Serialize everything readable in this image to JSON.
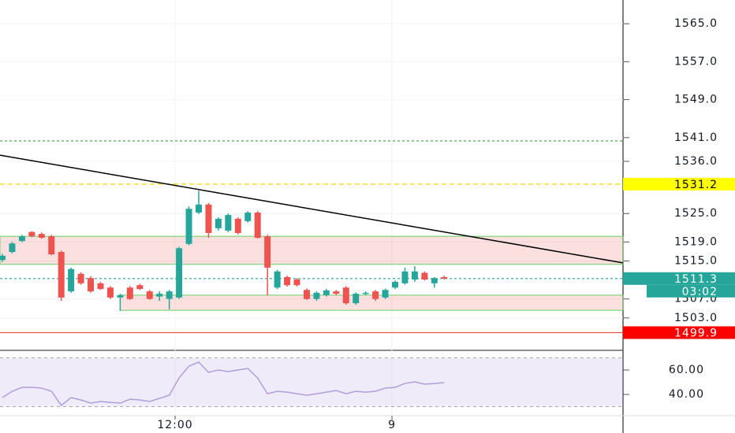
{
  "chart_data": {
    "type": "candlestick",
    "up_color": "#26a69a",
    "down_color": "#ef5350",
    "xlim": [
      -0.24,
      63.21
    ],
    "xticks": [
      {
        "value": 17.59,
        "label": "12:00"
      },
      {
        "value": 39.68,
        "label": "9"
      }
    ],
    "ylim": [
      1497,
      1570
    ],
    "yticks": [
      {
        "value": 1565,
        "label": "1565.0"
      },
      {
        "value": 1557,
        "label": "1557.0"
      },
      {
        "value": 1549,
        "label": "1549.0"
      },
      {
        "value": 1541,
        "label": "1541.0"
      },
      {
        "value": 1536,
        "label": "1536.0"
      },
      {
        "value": 1525,
        "label": "1525.0"
      },
      {
        "value": 1519,
        "label": "1519.0"
      },
      {
        "value": 1515,
        "label": "1515.0"
      },
      {
        "value": 1507,
        "label": "1507.0"
      },
      {
        "value": 1503,
        "label": "1503.0"
      }
    ],
    "grid": true,
    "open": [
      1515.2,
      1516.9,
      1519.2,
      1521.1,
      1520.7,
      1520.2,
      1516.9,
      1508.6,
      1512.3,
      1511.4,
      1510.3,
      1509.4,
      1507.3,
      1509.4,
      1509.9,
      1508.6,
      1507.5,
      1507.0,
      1507.3,
      1518.6,
      1525.2,
      1526.9,
      1521.9,
      1521.4,
      1523.9,
      1523.4,
      1525.2,
      1520.2,
      1509.4,
      1511.6,
      1511.1,
      1508.9,
      1507.0,
      1507.8,
      1508.6,
      1509.4,
      1506.1,
      1508.1,
      1508.6,
      1507.3,
      1509.4,
      1510.3,
      1511.1,
      1512.5,
      1510.3,
      1511.6
    ],
    "high": [
      1516.5,
      1519.0,
      1520.5,
      1521.3,
      1521.0,
      1520.5,
      1517.2,
      1513.6,
      1512.6,
      1511.8,
      1510.6,
      1509.7,
      1508.1,
      1509.7,
      1510.2,
      1508.9,
      1508.6,
      1508.9,
      1518.0,
      1526.5,
      1529.8,
      1527.2,
      1524.2,
      1525.0,
      1524.2,
      1525.5,
      1525.5,
      1520.5,
      1513.1,
      1511.9,
      1511.4,
      1509.2,
      1508.6,
      1509.1,
      1508.9,
      1509.7,
      1508.4,
      1508.6,
      1508.9,
      1509.2,
      1510.9,
      1513.6,
      1513.9,
      1512.8,
      1511.6,
      1511.9
    ],
    "low": [
      1514.8,
      1516.6,
      1519.0,
      1520.0,
      1519.7,
      1516.2,
      1506.6,
      1508.3,
      1510.0,
      1508.3,
      1508.9,
      1507.0,
      1504.5,
      1506.8,
      1508.9,
      1506.8,
      1506.6,
      1504.8,
      1507.0,
      1518.3,
      1524.9,
      1519.9,
      1521.4,
      1521.1,
      1520.6,
      1523.1,
      1519.7,
      1507.8,
      1509.1,
      1509.6,
      1509.6,
      1506.8,
      1506.6,
      1507.5,
      1507.8,
      1505.8,
      1505.8,
      1507.8,
      1506.6,
      1507.0,
      1509.1,
      1510.0,
      1510.6,
      1510.9,
      1509.4,
      1511.1
    ],
    "close": [
      1516.1,
      1518.7,
      1520.2,
      1520.2,
      1519.9,
      1516.4,
      1507.3,
      1513.3,
      1510.3,
      1508.6,
      1509.1,
      1507.3,
      1507.8,
      1507.0,
      1509.1,
      1507.0,
      1508.1,
      1508.6,
      1517.7,
      1526.0,
      1526.9,
      1520.9,
      1523.9,
      1524.7,
      1520.9,
      1525.2,
      1519.9,
      1513.6,
      1512.8,
      1509.9,
      1509.9,
      1507.0,
      1508.3,
      1508.8,
      1508.1,
      1506.1,
      1508.1,
      1508.3,
      1507.0,
      1508.9,
      1510.6,
      1512.8,
      1512.8,
      1511.1,
      1511.4,
      1511.3
    ],
    "levels": [
      {
        "value": 1540.3,
        "color": "#4caf50",
        "style": "dotted"
      },
      {
        "value": 1531.2,
        "color": "#f5d800",
        "style": "dashed",
        "label_bg": "#ffff00",
        "label_color": "#000000"
      },
      {
        "value": 1511.3,
        "color": "#26a69a",
        "style": "dotted",
        "label_bg": "#26a69a",
        "label_color": "#ffffff",
        "countdown": "03:02"
      },
      {
        "value": 1499.9,
        "color": "#ef5350",
        "style": "solid",
        "label_bg": "#ff0000",
        "label_color": "#ffffff"
      }
    ],
    "zones": [
      {
        "x_start": -0.24,
        "high": 1520.2,
        "low": 1514.3
      },
      {
        "x_start": 12,
        "high": 1507.8,
        "low": 1504.6
      }
    ],
    "trendline": {
      "x": [
        -0.24,
        63.21
      ],
      "y": [
        1537.3,
        1514.6
      ]
    },
    "indicator": {
      "type": "line",
      "color": "#b39ddb",
      "ylim": [
        22.6,
        74.2
      ],
      "yticks": [
        {
          "value": 60,
          "label": "60.00"
        },
        {
          "value": 40,
          "label": "40.00"
        }
      ],
      "band": [
        30,
        70
      ],
      "values": [
        37.4,
        42.6,
        45.8,
        45.8,
        45.2,
        42.6,
        31.0,
        37.4,
        35.5,
        32.9,
        34.2,
        33.5,
        32.9,
        36.1,
        35.5,
        34.2,
        36.8,
        39.4,
        53.5,
        63.2,
        66.5,
        58.1,
        60.0,
        58.7,
        60.0,
        61.3,
        53.5,
        40.6,
        42.6,
        41.9,
        40.6,
        39.4,
        40.6,
        41.9,
        43.2,
        40.6,
        42.6,
        41.9,
        42.6,
        45.2,
        45.8,
        49.0,
        50.3,
        48.4,
        49.0,
        49.7
      ]
    }
  }
}
